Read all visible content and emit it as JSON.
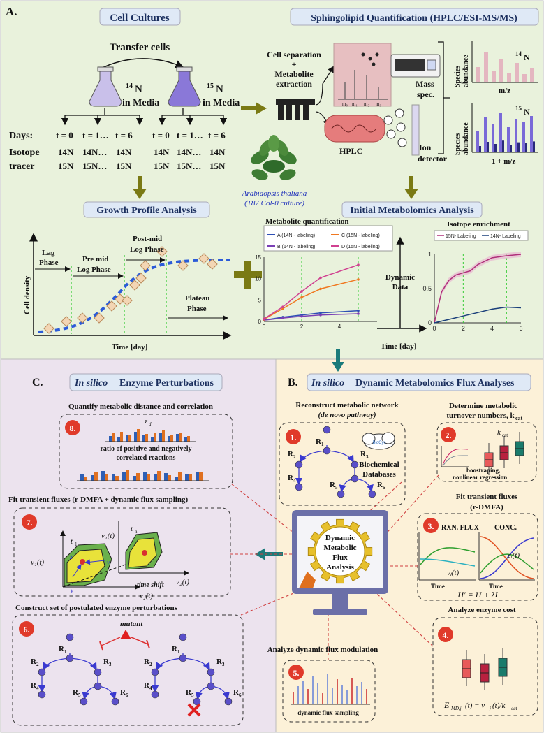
{
  "panelA": {
    "label": "A.",
    "cell_cultures": "Cell Cultures",
    "sphingo": "Sphingolipid Quantification (HPLC/ESI-MS/MS)",
    "transfer": "Transfer cells",
    "n14": "14",
    "n15": "15",
    "N": "N",
    "in_media": "in Media",
    "days": "Days:",
    "t0": "t = 0",
    "t1": "t = 1…",
    "t6": "t = 6",
    "isotope": "Isotope",
    "tracer": "tracer",
    "r14a": "14N",
    "r14b": "14N…",
    "r15a": "15N",
    "r15b": "15N…",
    "cell_sep1": "Cell separation",
    "plus": "+",
    "metab1": "Metabolite",
    "metab2": "extraction",
    "mass": "Mass",
    "spec": "spec.",
    "hplc": "HPLC",
    "ion1": "Ion",
    "ion2": "detector",
    "species": "Species",
    "abundance": "abundance",
    "mz": "m/z",
    "mz1": "1 + m/z",
    "m0": "m₀",
    "m1": "m₁",
    "m2": "m₂",
    "m3": "m₃",
    "arabidopsis1": "Arabidopsis thaliana",
    "arabidopsis2": "(T87 Col-0 culture)",
    "growth": "Growth Profile Analysis",
    "initial": "Initial Metabolomics Analysis",
    "lag1": "Lag",
    "lag2": "Phase",
    "premid1": "Pre mid",
    "premid2": "Log Phase",
    "postmid1": "Post-mid",
    "postmid2": "Log Phase",
    "plateau1": "Plateau",
    "plateau2": "Phase",
    "cell_density": "Cell density",
    "time_day": "Time [day]",
    "metab_quant": "Metabolite quantification",
    "legA": "A (14N - labeling)",
    "legB": "B (14N - labeling)",
    "legC": "C (15N - labeling)",
    "legD": "D (15N - labeling)",
    "dynamic1": "Dynamic",
    "dynamic2": "Data",
    "iso_enrich": "Isotope enrichment",
    "leg15": "15N- Labeling",
    "leg14": "14N- Labeling",
    "time_day2": "Time [day]"
  },
  "panelB": {
    "label": "B.",
    "title_it": "In silico",
    "title_rest": " Dynamic Metabolomics Flux Analyses",
    "recon1": "Reconstruct metabolic network",
    "recon2": "(de novo pathway)",
    "biochem1": "Biochemical",
    "biochem2": "Databases",
    "determine1": "Determine metabolic",
    "determine2": "turnover numbers, k",
    "kcat_sub": "cat",
    "boot1": "boostraping,",
    "boot2": "nonlinear regression",
    "kcat_label": "k",
    "fit1": "Fit transient fluxes",
    "fit2": "(r-DMFA)",
    "rxn_flux": "RXN. FLUX",
    "conc": "CONC.",
    "time": "Time",
    "vj": "vⱼ(t)",
    "ci": "cᵢ(t)",
    "hprime": "H′ = H + λI",
    "enzyme_cost": "Analyze enzyme cost",
    "emd": "E",
    "analyze_flux": "Analyze dynamic flux modulation",
    "dfs": "dynamic flux sampling",
    "center1": "Dynamic",
    "center2": "Metabolic",
    "center3": "Flux",
    "center4": "Analysis",
    "n1": "1.",
    "n2": "2.",
    "n3": "3.",
    "n4": "4.",
    "n5": "5.",
    "R1": "R",
    "R2": "R",
    "R3": "R",
    "R4": "R",
    "R5": "R",
    "R6": "R"
  },
  "panelC": {
    "label": "C.",
    "title_it": "In silico",
    "title_rest": " Enzyme Perturbations",
    "quantify": "Quantify metabolic distance and correlation",
    "zd": "z",
    "ratio1": "ratio of positive and negatively",
    "ratio2": "correlated reactions",
    "fitdfs": "Fit transient fluxes (r-DMFA + dynamic flux sampling)",
    "t1": "t",
    "tn": "t",
    "v1t": "v₁(t)",
    "v2t": "v₂(t)",
    "zdt": "z",
    "vwt": "v",
    "vmut": "v",
    "time_shift": "time shift",
    "construct": "Construct set of postulated enzyme perturbations",
    "mutant": "mutant",
    "n6": "6.",
    "n7": "7.",
    "n8": "8."
  },
  "colors": {
    "panelA_bg": "#e9f2dc",
    "panelB_bg": "#fcf1d8",
    "panelC_bg": "#ece3ee",
    "title_box": "#dfe9f6",
    "olive": "#7a7a14",
    "teal": "#1a7b7b",
    "red_badge": "#e03a2a",
    "purple_node": "#5a4fc9",
    "monitor": "#6b6fa8",
    "gear": "#e7c02c"
  }
}
